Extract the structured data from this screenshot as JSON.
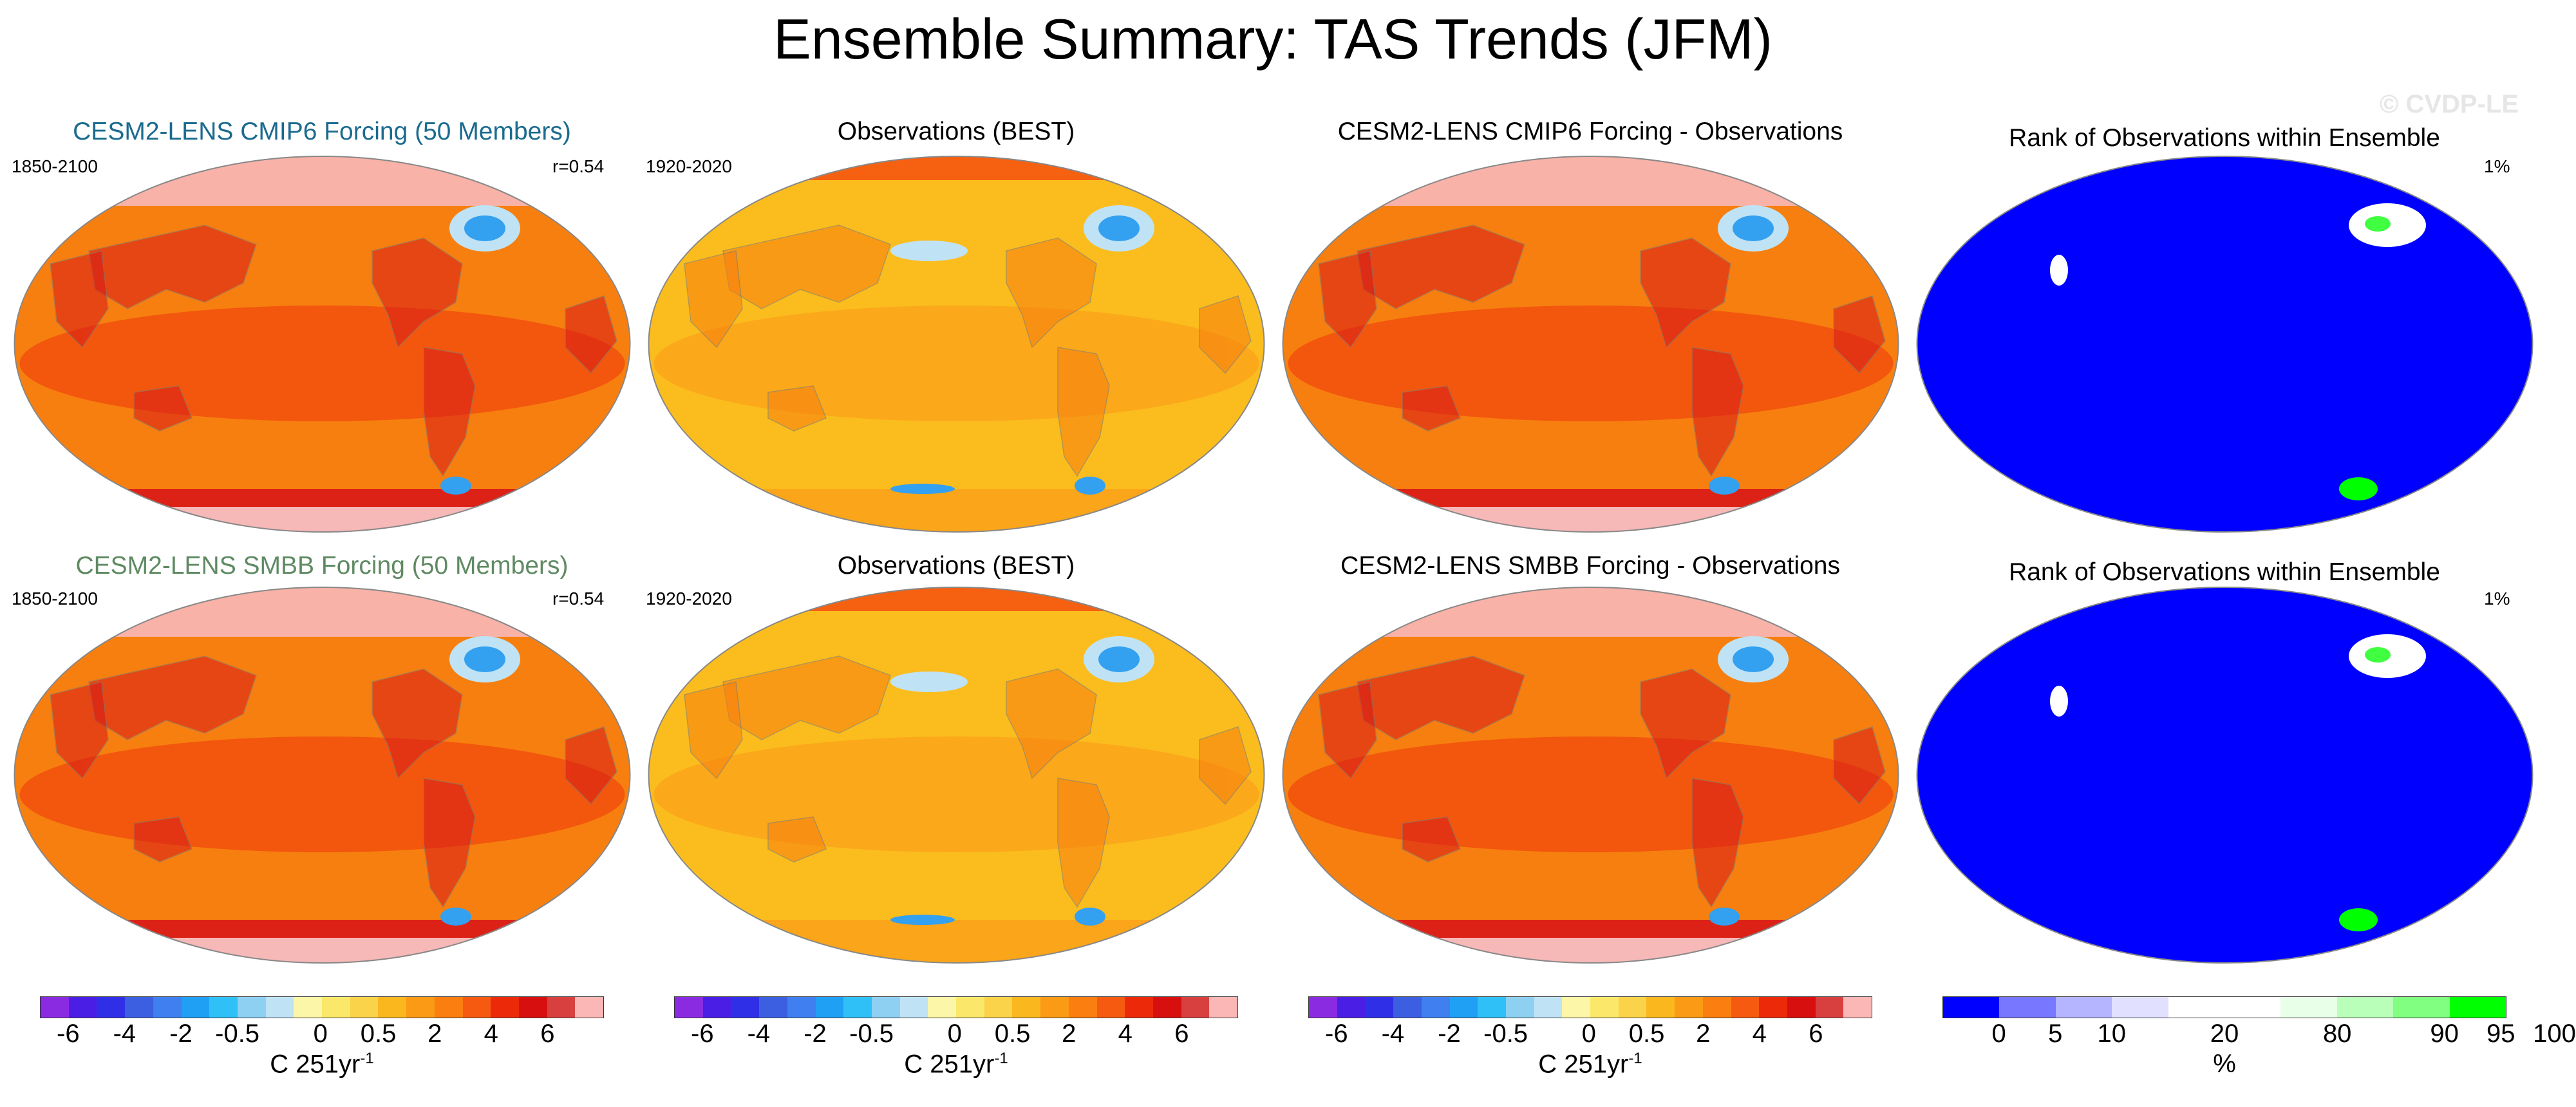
{
  "title": "Ensemble Summary: TAS Trends (JFM)",
  "watermark": "© CVDP-LE",
  "colors": {
    "ens_title_cmip6": "#1b6b8f",
    "ens_title_smbb": "#5f8a63"
  },
  "rows": [
    {
      "ensemble": {
        "title": "CESM2-LENS CMIP6 Forcing (50 Members)",
        "period": "1850-2100",
        "corr": "r=0.54"
      },
      "observations": {
        "title": "Observations (BEST)",
        "period": "1920-2020"
      },
      "difference": {
        "title": "CESM2-LENS CMIP6 Forcing - Observations"
      },
      "rank": {
        "title": "Rank of Observations within Ensemble",
        "pct": "1%"
      }
    },
    {
      "ensemble": {
        "title": "CESM2-LENS SMBB Forcing (50 Members)",
        "period": "1850-2100",
        "corr": "r=0.54"
      },
      "observations": {
        "title": "Observations (BEST)",
        "period": "1920-2020"
      },
      "difference": {
        "title": "CESM2-LENS SMBB Forcing - Observations"
      },
      "rank": {
        "title": "Rank of Observations within Ensemble",
        "pct": "1%"
      }
    }
  ],
  "colorbars": {
    "trend": {
      "colors": [
        "#8a2be2",
        "#4b1ee6",
        "#2f2fe8",
        "#3b5fe0",
        "#3f7ff0",
        "#1fa0f5",
        "#2fc0f7",
        "#8ed0f2",
        "#bfe3f5",
        "#fbf6a8",
        "#fbe86a",
        "#fbd34a",
        "#fbb71e",
        "#fb9a14",
        "#fa7f10",
        "#f55a10",
        "#ec2a0a",
        "#d80f0f",
        "#d84040",
        "#fbb6b6"
      ],
      "ticks": [
        "-6",
        "-4",
        "-2",
        "-0.5",
        "0",
        "0.5",
        "2",
        "4",
        "6"
      ],
      "unit": "C 251yr",
      "unit_sup": "-1"
    },
    "rank": {
      "colors": [
        "#0000ff",
        "#7777ff",
        "#b4b4ff",
        "#e1e1ff",
        "#ffffff",
        "#ffffff",
        "#e8ffe8",
        "#b9ffb9",
        "#80ff80",
        "#00ff00"
      ],
      "ticks": [
        "0",
        "5",
        "10",
        "20",
        "80",
        "90",
        "95",
        "100"
      ],
      "unit": "%"
    }
  }
}
